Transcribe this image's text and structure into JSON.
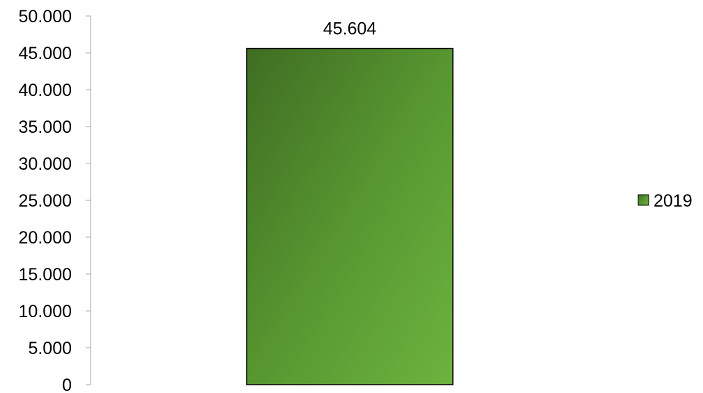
{
  "chart_data": {
    "type": "bar",
    "categories": [
      ""
    ],
    "series": [
      {
        "name": "2019",
        "values": [
          45604
        ],
        "color": "#5a9a32"
      }
    ],
    "data_labels": [
      "45.604"
    ],
    "y_ticks": [
      "0",
      "5.000",
      "10.000",
      "15.000",
      "20.000",
      "25.000",
      "30.000",
      "35.000",
      "40.000",
      "45.000",
      "50.000"
    ],
    "ylim": [
      0,
      50000
    ],
    "title": "",
    "xlabel": "",
    "ylabel": "",
    "legend_position": "right",
    "grid": false
  }
}
